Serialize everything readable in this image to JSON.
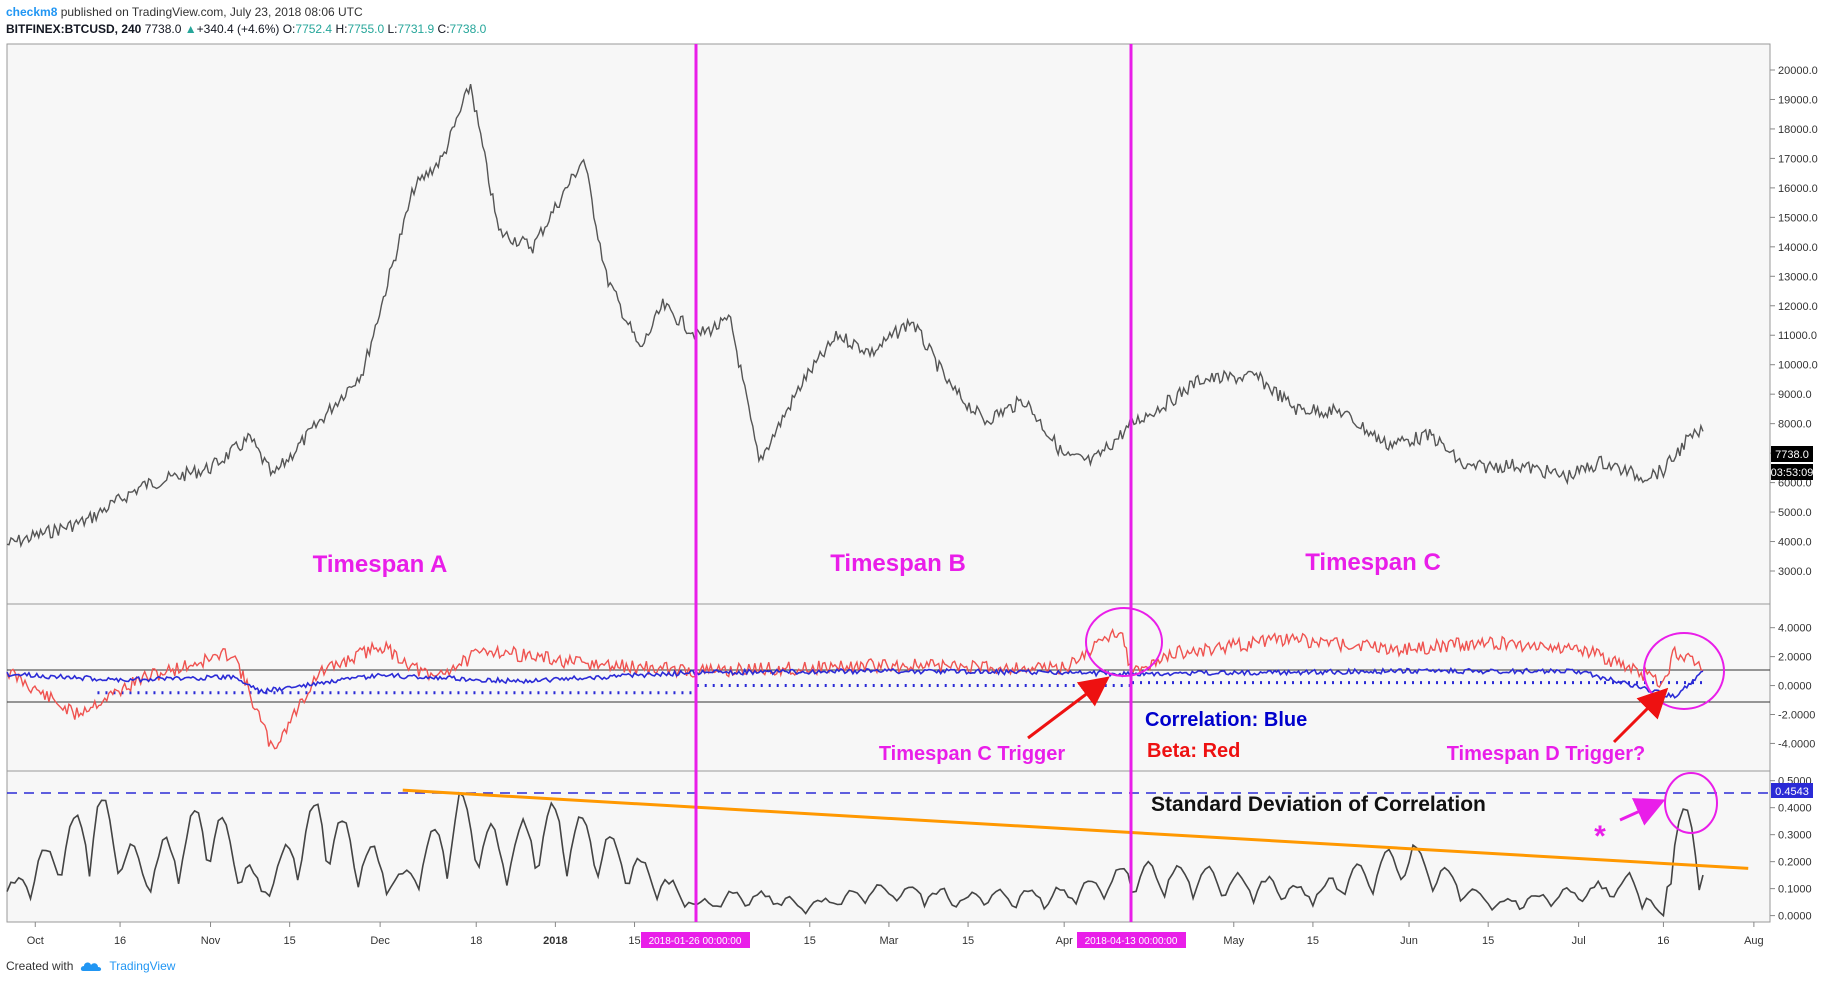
{
  "header": {
    "author": "checkm8",
    "published": " published on TradingView.com, July 23, 2018 08:06 UTC",
    "symbol": "BITFINEX:BTCUSD, 240",
    "last": "7738.0",
    "change": "+340.4 (+4.6%)",
    "o_label": "O:",
    "o_value": "7752.4",
    "h_label": "H:",
    "h_value": "7755.0",
    "l_label": "L:",
    "l_value": "7731.9",
    "c_label": "C:",
    "c_value": "7738.0"
  },
  "footer": {
    "created_with": "Created with",
    "brand": "TradingView"
  },
  "colors": {
    "price": "#555555",
    "beta": "#ef5350",
    "correlation": "#2b2bd6",
    "stdev": "#444444",
    "trend": "#ff9800",
    "magenta": "#e91ee9",
    "label_dark": "#0000cc"
  },
  "chart_data": [
    {
      "type": "line",
      "panel": "price",
      "series_name": "BITFINEX:BTCUSD",
      "y_ticks": [
        "20000.0",
        "19000.0",
        "18000.0",
        "17000.0",
        "16000.0",
        "15000.0",
        "14000.0",
        "13000.0",
        "12000.0",
        "11000.0",
        "10000.0",
        "9000.0",
        "8000.0",
        "7000.0",
        "6000.0",
        "5000.0",
        "4000.0",
        "3000.0"
      ],
      "ylim": [
        3000,
        20000
      ],
      "x_ticks": [
        "Oct",
        "16",
        "Nov",
        "15",
        "Dec",
        "18",
        "2018",
        "15",
        "15",
        "Mar",
        "15",
        "Apr",
        "May",
        "15",
        "Jun",
        "15",
        "Jul",
        "16",
        "Aug"
      ],
      "x": [
        "2017-09-26",
        "2017-10-10",
        "2017-10-20",
        "2017-11-01",
        "2017-11-08",
        "2017-11-12",
        "2017-11-20",
        "2017-11-28",
        "2017-12-07",
        "2017-12-12",
        "2017-12-17",
        "2017-12-22",
        "2017-12-28",
        "2018-01-06",
        "2018-01-10",
        "2018-01-16",
        "2018-01-20",
        "2018-01-26",
        "2018-02-01",
        "2018-02-06",
        "2018-02-14",
        "2018-02-20",
        "2018-02-26",
        "2018-03-05",
        "2018-03-12",
        "2018-03-18",
        "2018-03-25",
        "2018-04-01",
        "2018-04-06",
        "2018-04-12",
        "2018-04-13",
        "2018-04-20",
        "2018-04-25",
        "2018-05-05",
        "2018-05-12",
        "2018-05-20",
        "2018-05-28",
        "2018-06-05",
        "2018-06-11",
        "2018-06-20",
        "2018-06-29",
        "2018-07-05",
        "2018-07-12",
        "2018-07-16",
        "2018-07-20",
        "2018-07-23"
      ],
      "values": [
        3900,
        4700,
        5900,
        6500,
        7500,
        6200,
        8000,
        9800,
        16000,
        17000,
        19500,
        14500,
        14000,
        17000,
        13000,
        10500,
        12000,
        11000,
        11500,
        6700,
        9500,
        11000,
        10400,
        11500,
        9200,
        8100,
        8800,
        6900,
        6700,
        7800,
        8000,
        8800,
        9500,
        9600,
        8500,
        8400,
        7300,
        7600,
        6500,
        6600,
        6200,
        6700,
        6200,
        6400,
        7400,
        7738
      ],
      "last_label": "7738.0",
      "timer_label": "03:53:09"
    },
    {
      "type": "line",
      "panel": "correlation-beta",
      "y_ticks": [
        "4.0000",
        "2.0000",
        "0.0000",
        "-2.0000",
        "-4.0000"
      ],
      "ylim": [
        -4.8,
        4.6
      ],
      "series": [
        {
          "name": "Correlation: Blue",
          "color": "#2b2bd6",
          "x": [
            "2017-09-26",
            "2017-10-15",
            "2017-11-05",
            "2017-11-10",
            "2017-12-01",
            "2017-12-25",
            "2018-01-26",
            "2018-03-01",
            "2018-04-01",
            "2018-04-13",
            "2018-05-05",
            "2018-06-01",
            "2018-07-01",
            "2018-07-18",
            "2018-07-23"
          ],
          "values": [
            0.8,
            0.4,
            0.6,
            -0.4,
            0.7,
            0.3,
            0.9,
            1.0,
            0.9,
            0.8,
            0.9,
            1.0,
            1.0,
            -0.8,
            1.0
          ]
        },
        {
          "name": "Beta: Red",
          "color": "#ef5350",
          "x": [
            "2017-09-26",
            "2017-10-08",
            "2017-10-20",
            "2017-11-05",
            "2017-11-12",
            "2017-11-20",
            "2017-12-01",
            "2017-12-10",
            "2017-12-20",
            "2018-01-05",
            "2018-01-26",
            "2018-03-01",
            "2018-04-01",
            "2018-04-11",
            "2018-04-13",
            "2018-04-20",
            "2018-05-10",
            "2018-06-01",
            "2018-06-15",
            "2018-07-01",
            "2018-07-16",
            "2018-07-18",
            "2018-07-20",
            "2018-07-23"
          ],
          "values": [
            1.0,
            -2.0,
            0.5,
            2.3,
            -4.5,
            0.8,
            2.8,
            0.5,
            2.5,
            1.5,
            1.0,
            1.4,
            1.2,
            4.0,
            0.8,
            2.2,
            3.2,
            2.5,
            3.0,
            2.6,
            0.2,
            2.4,
            2.0,
            1.0
          ]
        }
      ],
      "guides": [
        {
          "x_from": "2017-10-12",
          "x_to": "2018-01-26",
          "value": -0.5
        },
        {
          "x_from": "2018-01-26",
          "x_to": "2018-04-13",
          "value": 0.0
        },
        {
          "x_from": "2018-04-13",
          "x_to": "2018-07-23",
          "value": 0.2
        }
      ]
    },
    {
      "type": "line",
      "panel": "stdev",
      "title": "Standard Deviation of Correlation",
      "y_ticks": [
        "0.5000",
        "0.4000",
        "0.3000",
        "0.2000",
        "0.1000",
        "0.0000"
      ],
      "ylim": [
        -0.02,
        0.51
      ],
      "x": [
        "2017-09-26",
        "2017-10-05",
        "2017-10-12",
        "2017-10-20",
        "2017-11-01",
        "2017-11-10",
        "2017-11-20",
        "2017-12-05",
        "2017-12-15",
        "2017-12-22",
        "2018-01-01",
        "2018-01-12",
        "2018-01-26",
        "2018-02-05",
        "2018-02-15",
        "2018-03-01",
        "2018-03-15",
        "2018-04-01",
        "2018-04-13",
        "2018-05-01",
        "2018-05-15",
        "2018-06-01",
        "2018-06-15",
        "2018-07-01",
        "2018-07-10",
        "2018-07-16",
        "2018-07-18",
        "2018-07-21",
        "2018-07-23"
      ],
      "values": [
        0.1,
        0.3,
        0.47,
        0.2,
        0.44,
        0.12,
        0.44,
        0.15,
        0.46,
        0.3,
        0.42,
        0.28,
        0.05,
        0.1,
        0.04,
        0.12,
        0.08,
        0.1,
        0.2,
        0.16,
        0.1,
        0.28,
        0.05,
        0.1,
        0.15,
        0.0,
        0.45,
        0.38,
        0.15
      ],
      "hline": {
        "value": 0.4543,
        "label": "0.4543"
      },
      "trend": {
        "x_from": "2017-12-05",
        "y_from": 0.465,
        "x_to": "2018-07-31",
        "y_to": 0.175
      }
    }
  ],
  "annotations": {
    "timespan_a": "Timespan A",
    "timespan_b": "Timespan B",
    "timespan_c": "Timespan C",
    "trigger_c": "Timespan C Trigger",
    "trigger_d": "Timespan D Trigger?",
    "correlation_label": "Correlation: Blue",
    "beta_label": "Beta: Red",
    "stdev_title": "Standard Deviation of Correlation",
    "asterisk": "*",
    "date1": "2018-01-26 00:00:00",
    "date2": "2018-04-13 00:00:00"
  }
}
